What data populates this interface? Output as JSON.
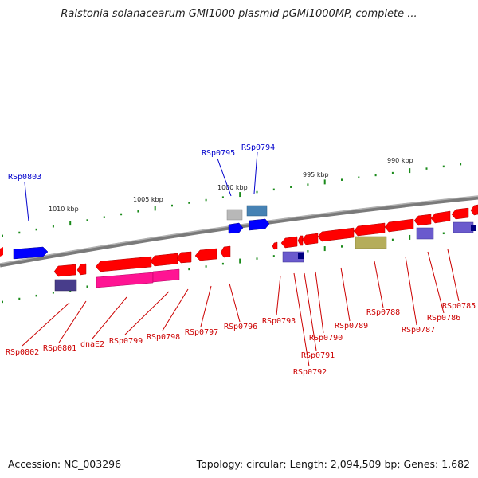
{
  "title": "Ralstonia solanacearum GMI1000 plasmid pGMI1000MP, complete ...",
  "accession_text": "Accession: NC_003296",
  "topology_text": "Topology: circular; Length: 2,094,509 bp; Genes: 1,682",
  "scale_labels": [
    "1010 kbp",
    "1005 kbp",
    "1000 kbp",
    "995 kbp",
    "990 kbp"
  ],
  "gene_labels_top": [
    "RSp0803",
    "RSp0795",
    "RSp0794"
  ],
  "gene_labels_bottom": [
    "RSp0802",
    "RSp0801",
    "dnaE2",
    "RSp0799",
    "RSp0798",
    "RSp0797",
    "RSp0796",
    "RSp0793",
    "RSp0792",
    "RSp0791",
    "RSp0790",
    "RSp0789",
    "RSp0788",
    "RSp0787",
    "RSp0786",
    "RSp0785"
  ],
  "colors": {
    "forward_label": "#0000cc",
    "reverse_label": "#cc0000",
    "backbone": "#888888",
    "tick": "#1a8a1a",
    "gene_red": "#ff0000",
    "gene_blue": "#0000ff",
    "gene_pink": "#ff1493",
    "gene_purple": "#6a5acd",
    "gene_olive": "#b5ad5a"
  }
}
